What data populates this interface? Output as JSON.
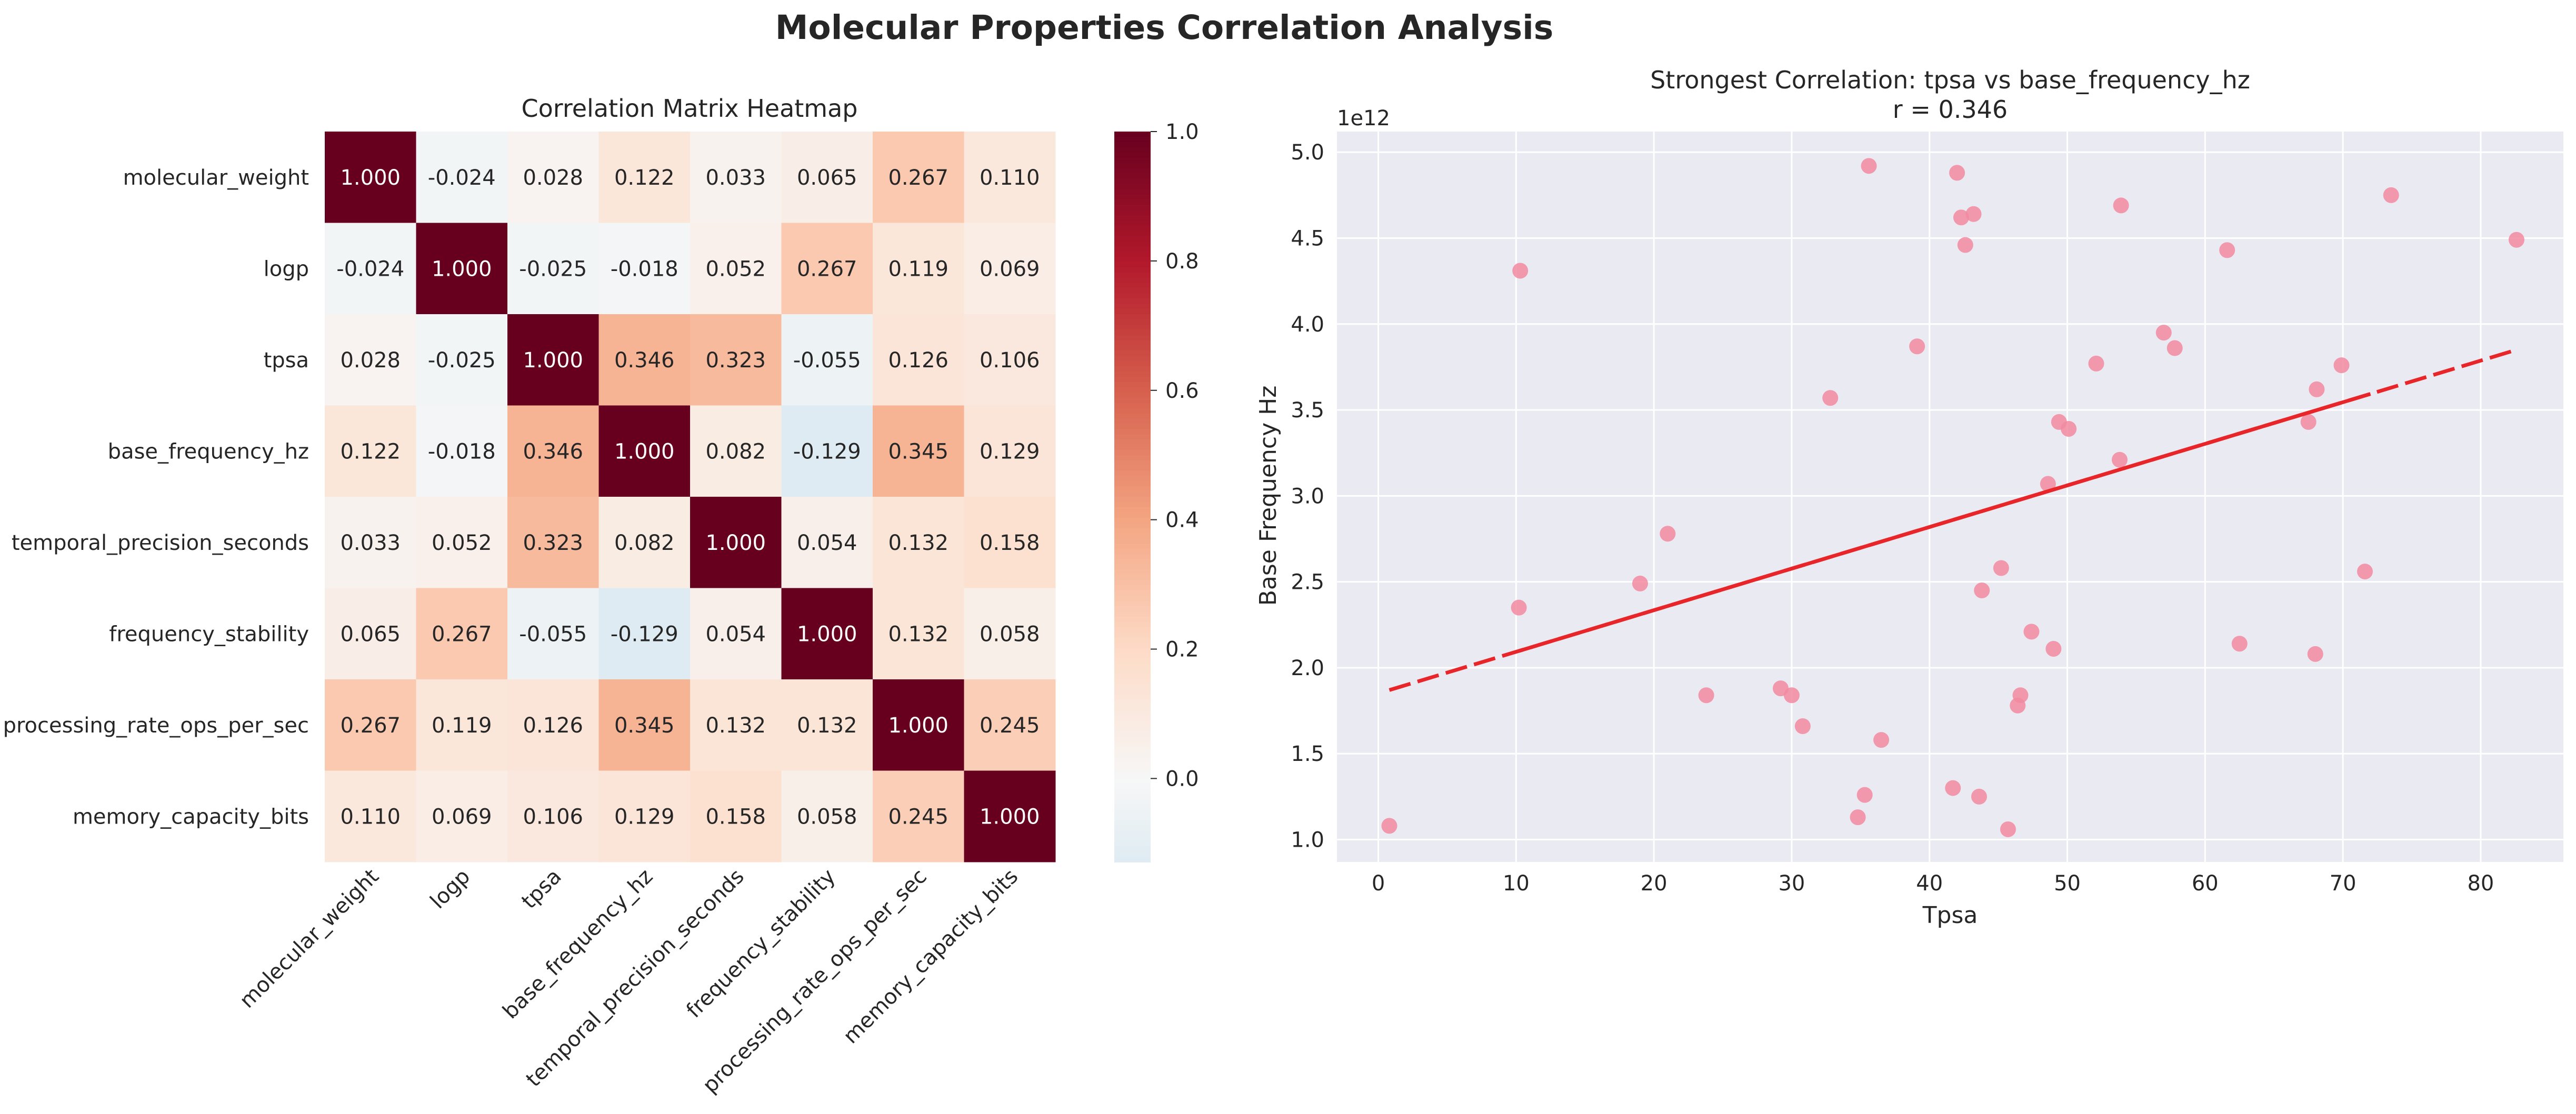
{
  "figure": {
    "title": "Molecular Properties Correlation Analysis"
  },
  "chart_data": [
    {
      "type": "heatmap",
      "title": "Correlation Matrix Heatmap",
      "row_labels": [
        "molecular_weight",
        "logp",
        "tpsa",
        "base_frequency_hz",
        "temporal_precision_seconds",
        "frequency_stability",
        "processing_rate_ops_per_sec",
        "memory_capacity_bits"
      ],
      "col_labels": [
        "molecular_weight",
        "logp",
        "tpsa",
        "base_frequency_hz",
        "temporal_precision_seconds",
        "frequency_stability",
        "processing_rate_ops_per_sec",
        "memory_capacity_bits"
      ],
      "values": [
        [
          1.0,
          -0.024,
          0.028,
          0.122,
          0.033,
          0.065,
          0.267,
          0.11
        ],
        [
          -0.024,
          1.0,
          -0.025,
          -0.018,
          0.052,
          0.267,
          0.119,
          0.069
        ],
        [
          0.028,
          -0.025,
          1.0,
          0.346,
          0.323,
          -0.055,
          0.126,
          0.106
        ],
        [
          0.122,
          -0.018,
          0.346,
          1.0,
          0.082,
          -0.129,
          0.345,
          0.129
        ],
        [
          0.033,
          0.052,
          0.323,
          0.082,
          1.0,
          0.054,
          0.132,
          0.158
        ],
        [
          0.065,
          0.267,
          -0.055,
          -0.129,
          0.054,
          1.0,
          0.132,
          0.058
        ],
        [
          0.267,
          0.119,
          0.126,
          0.345,
          0.132,
          0.132,
          1.0,
          0.245
        ],
        [
          0.11,
          0.069,
          0.106,
          0.129,
          0.158,
          0.058,
          0.245,
          1.0
        ]
      ],
      "cell_labels": [
        [
          "1.000",
          "-0.024",
          "0.028",
          "0.122",
          "0.033",
          "0.065",
          "0.267",
          "0.110"
        ],
        [
          "-0.024",
          "1.000",
          "-0.025",
          "-0.018",
          "0.052",
          "0.267",
          "0.119",
          "0.069"
        ],
        [
          "0.028",
          "-0.025",
          "1.000",
          "0.346",
          "0.323",
          "-0.055",
          "0.126",
          "0.106"
        ],
        [
          "0.122",
          "-0.018",
          "0.346",
          "1.000",
          "0.082",
          "-0.129",
          "0.345",
          "0.129"
        ],
        [
          "0.033",
          "0.052",
          "0.323",
          "0.082",
          "1.000",
          "0.054",
          "0.132",
          "0.158"
        ],
        [
          "0.065",
          "0.267",
          "-0.055",
          "-0.129",
          "0.054",
          "1.000",
          "0.132",
          "0.058"
        ],
        [
          "0.267",
          "0.119",
          "0.126",
          "0.345",
          "0.132",
          "0.132",
          "1.000",
          "0.245"
        ],
        [
          "0.110",
          "0.069",
          "0.106",
          "0.129",
          "0.158",
          "0.058",
          "0.245",
          "1.000"
        ]
      ],
      "colormap": "RdBu_r",
      "vmin": -0.129,
      "vmax": 1.0,
      "colorbar": {
        "ticks": [
          0.0,
          0.2,
          0.4,
          0.6,
          0.8,
          1.0
        ],
        "tick_labels": [
          "0.0",
          "0.2",
          "0.4",
          "0.6",
          "0.8",
          "1.0"
        ]
      }
    },
    {
      "type": "scatter",
      "title": "Strongest Correlation: tpsa vs base_frequency_hz",
      "subtitle": "r = 0.346",
      "xlabel": "Tpsa",
      "ylabel": "Base Frequency Hz",
      "y_offset_label": "1e12",
      "xlim": [
        -3,
        86
      ],
      "ylim": [
        0.87,
        5.12
      ],
      "x_ticks": [
        0,
        10,
        20,
        30,
        40,
        50,
        60,
        70,
        80
      ],
      "x_tick_labels": [
        "0",
        "10",
        "20",
        "30",
        "40",
        "50",
        "60",
        "70",
        "80"
      ],
      "y_ticks": [
        1.0,
        1.5,
        2.0,
        2.5,
        3.0,
        3.5,
        4.0,
        4.5,
        5.0
      ],
      "y_tick_labels": [
        "1.0",
        "1.5",
        "2.0",
        "2.5",
        "3.0",
        "3.5",
        "4.0",
        "4.5",
        "5.0"
      ],
      "grid": true,
      "point_color": "#f28aa0",
      "line_color": "#e8262a",
      "points": [
        [
          0.8,
          1.08
        ],
        [
          10.2,
          2.35
        ],
        [
          10.3,
          4.31
        ],
        [
          19.0,
          2.49
        ],
        [
          21.0,
          2.78
        ],
        [
          23.8,
          1.84
        ],
        [
          29.2,
          1.88
        ],
        [
          30.0,
          1.84
        ],
        [
          30.8,
          1.66
        ],
        [
          32.8,
          3.57
        ],
        [
          34.8,
          1.13
        ],
        [
          35.3,
          1.26
        ],
        [
          35.6,
          4.92
        ],
        [
          36.5,
          1.58
        ],
        [
          39.1,
          3.87
        ],
        [
          41.7,
          1.3
        ],
        [
          42.0,
          4.88
        ],
        [
          42.3,
          4.62
        ],
        [
          42.6,
          4.46
        ],
        [
          43.2,
          4.64
        ],
        [
          43.6,
          1.25
        ],
        [
          43.8,
          2.45
        ],
        [
          45.2,
          2.58
        ],
        [
          45.7,
          1.06
        ],
        [
          46.4,
          1.78
        ],
        [
          46.6,
          1.84
        ],
        [
          47.4,
          2.21
        ],
        [
          48.6,
          3.07
        ],
        [
          49.0,
          2.11
        ],
        [
          49.4,
          3.43
        ],
        [
          50.1,
          3.39
        ],
        [
          52.1,
          3.77
        ],
        [
          53.8,
          3.21
        ],
        [
          53.9,
          4.69
        ],
        [
          57.0,
          3.95
        ],
        [
          57.8,
          3.86
        ],
        [
          61.6,
          4.43
        ],
        [
          62.5,
          2.14
        ],
        [
          67.5,
          3.43
        ],
        [
          68.0,
          2.08
        ],
        [
          68.1,
          3.62
        ],
        [
          69.9,
          3.76
        ],
        [
          71.6,
          2.56
        ],
        [
          73.5,
          4.75
        ],
        [
          82.6,
          4.49
        ]
      ],
      "trend_line": {
        "x": [
          0.8,
          82.6
        ],
        "y": [
          1.87,
          3.85
        ]
      }
    }
  ]
}
